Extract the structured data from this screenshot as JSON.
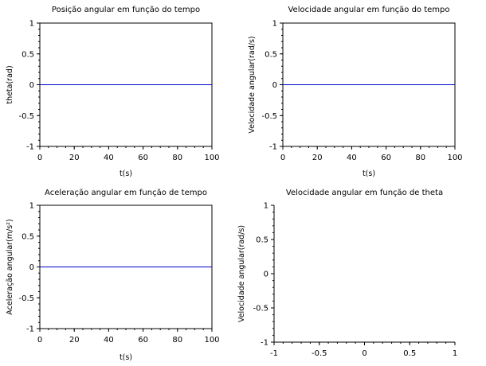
{
  "chart_data": [
    {
      "type": "line",
      "title": "Posição angular em função do tempo",
      "xlabel": "t(s)",
      "ylabel": "theta(rad)",
      "xlim": [
        0,
        100
      ],
      "ylim": [
        -1,
        1
      ],
      "xticks": [
        "0",
        "20",
        "40",
        "60",
        "80",
        "100"
      ],
      "yticks": [
        "1",
        "0.5",
        "0",
        "-0.5",
        "-1"
      ],
      "grid": false,
      "series": [
        {
          "x": [
            0,
            100
          ],
          "y": [
            0,
            0
          ],
          "color": "#0000cc"
        }
      ]
    },
    {
      "type": "line",
      "title": "Velocidade angular em função do tempo",
      "xlabel": "t(s)",
      "ylabel": "Velocidade angular(rad/s)",
      "xlim": [
        0,
        100
      ],
      "ylim": [
        -1,
        1
      ],
      "xticks": [
        "0",
        "20",
        "40",
        "60",
        "80",
        "100"
      ],
      "yticks": [
        "1",
        "0.5",
        "0",
        "-0.5",
        "-1"
      ],
      "grid": false,
      "series": [
        {
          "x": [
            0,
            100
          ],
          "y": [
            0,
            0
          ],
          "color": "#0000cc"
        }
      ]
    },
    {
      "type": "line",
      "title": "Aceleração angular em função de tempo",
      "xlabel": "t(s)",
      "ylabel": "Aceleração angular(m/s²)",
      "xlim": [
        0,
        100
      ],
      "ylim": [
        -1,
        1
      ],
      "xticks": [
        "0",
        "20",
        "40",
        "60",
        "80",
        "100"
      ],
      "yticks": [
        "1",
        "0.5",
        "0",
        "-0.5",
        "-1"
      ],
      "grid": false,
      "series": [
        {
          "x": [
            0,
            100
          ],
          "y": [
            0,
            0
          ],
          "color": "#0000cc"
        }
      ]
    },
    {
      "type": "line",
      "title": "Velocidade angular em função de theta",
      "xlabel": "",
      "ylabel": "Velocidade angular(rad/s)",
      "xlim": [
        -1,
        1
      ],
      "ylim": [
        -1,
        1
      ],
      "xticks": [
        "-1",
        "-0.5",
        "0",
        "0.5",
        "1"
      ],
      "yticks": [
        "1",
        "0.5",
        "0",
        "-0.5",
        "-1"
      ],
      "grid": false,
      "axis_style": "centered-left",
      "series": []
    }
  ]
}
